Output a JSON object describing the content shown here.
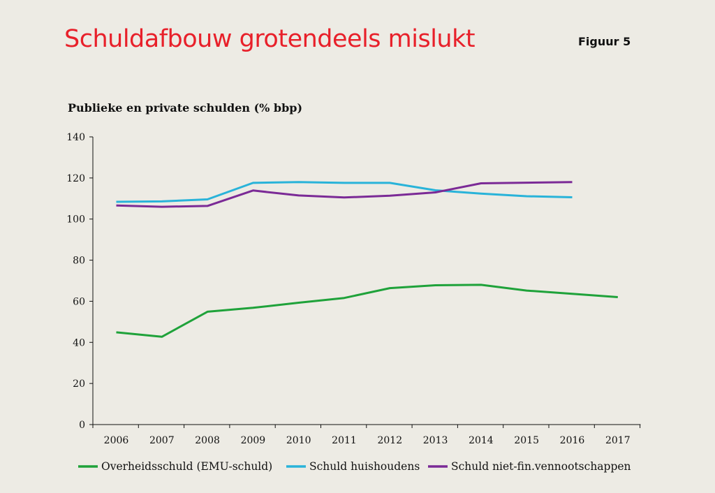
{
  "header": {
    "title": "Schuldafbouw grotendeels mislukt",
    "figure_label": "Figuur 5"
  },
  "chart_data": {
    "type": "line",
    "title": "Publieke en private schulden (% bbp)",
    "xlabel": "",
    "ylabel": "",
    "categories": [
      "2006",
      "2007",
      "2008",
      "2009",
      "2010",
      "2011",
      "2012",
      "2013",
      "2014",
      "2015",
      "2016",
      "2017"
    ],
    "ylim": [
      0,
      140
    ],
    "yticks": [
      0,
      20,
      40,
      60,
      80,
      100,
      120,
      140
    ],
    "grid": false,
    "legend_position": "bottom",
    "series": [
      {
        "name": "Overheidsschuld (EMU-schuld)",
        "color": "#1fa23a",
        "values": [
          44.9,
          42.7,
          54.9,
          56.8,
          59.3,
          61.6,
          66.4,
          67.8,
          68.0,
          65.2,
          63.6,
          62.0
        ]
      },
      {
        "name": "Schuld huishoudens",
        "color": "#29b3d9",
        "values": [
          108.4,
          108.6,
          109.6,
          117.6,
          118.0,
          117.6,
          117.6,
          114.0,
          112.4,
          111.1,
          110.6,
          null
        ]
      },
      {
        "name": "Schuld niet-fin.vennootschappen",
        "color": "#7b2a96",
        "values": [
          106.6,
          106.0,
          106.4,
          113.9,
          111.5,
          110.5,
          111.4,
          113.0,
          117.4,
          117.7,
          118.0,
          null
        ]
      }
    ]
  }
}
